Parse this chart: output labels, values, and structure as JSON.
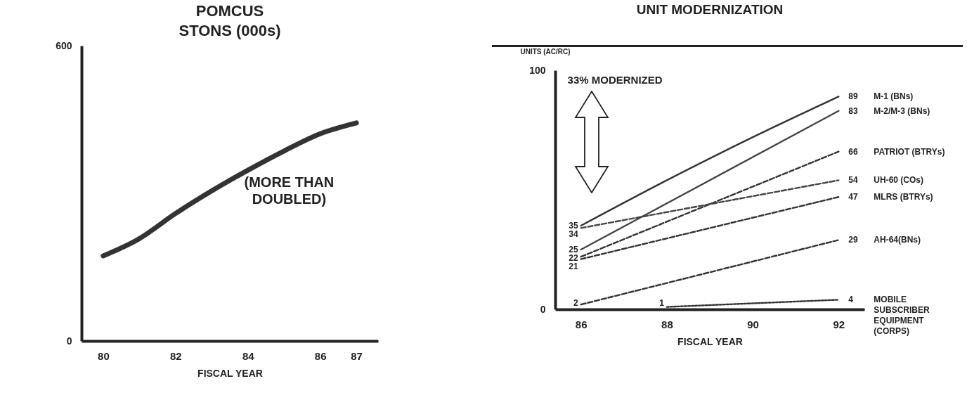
{
  "chart_data": [
    {
      "type": "line",
      "title": "POMCUS\nSTONS (000s)",
      "xlabel": "FISCAL YEAR",
      "x": [
        80,
        81,
        82,
        83,
        84,
        85,
        86,
        87
      ],
      "values": [
        173,
        208,
        259,
        305,
        347,
        386,
        421,
        443
      ],
      "color": "#333333",
      "xlim": [
        79.4,
        87.6
      ],
      "ylim": [
        0,
        600
      ],
      "xticks": [
        80,
        82,
        84,
        86,
        87
      ],
      "yticks": [
        0,
        600
      ],
      "grid": false,
      "marker": "none",
      "line_style": "solid",
      "annotations": [
        "(MORE THAN\nDOUBLED)"
      ]
    },
    {
      "type": "line",
      "title": "UNIT MODERNIZATION",
      "xlabel": "FISCAL YEAR",
      "ylabel": "UNITS (AC/RC)",
      "x": [
        86,
        88,
        90,
        92
      ],
      "xlim": [
        85.4,
        92.6
      ],
      "ylim": [
        0,
        100
      ],
      "xticks": [
        86,
        88,
        90,
        92
      ],
      "yticks": [
        0,
        100
      ],
      "grid": false,
      "marker": "none",
      "annotations": [
        "33% MODERNIZED"
      ],
      "series": [
        {
          "name": "M-1 (BNs)",
          "color": "#333333",
          "line_style": "solid",
          "values": [
            35,
            54,
            72,
            89
          ],
          "value_labels": [
            "35",
            null,
            null,
            "89"
          ]
        },
        {
          "name": "M-2/M-3 (BNs)",
          "color": "#444444",
          "line_style": "solid",
          "x": [
            86,
            92
          ],
          "values": [
            25,
            83
          ],
          "value_labels": [
            "25",
            "83"
          ]
        },
        {
          "name": "PATRIOT (BTRYs)",
          "color": "#333333",
          "line_style": "dashed",
          "x": [
            86,
            92
          ],
          "values": [
            22,
            66
          ],
          "value_labels": [
            "22",
            "66"
          ]
        },
        {
          "name": "UH-60 (COs)",
          "color": "#444444",
          "line_style": "dashed",
          "x": [
            86,
            92
          ],
          "values": [
            34,
            54
          ],
          "value_labels": [
            "34",
            "54"
          ]
        },
        {
          "name": "MLRS (BTRYs)",
          "color": "#333333",
          "line_style": "dashed",
          "x": [
            86,
            92
          ],
          "values": [
            21,
            47
          ],
          "value_labels": [
            "21",
            "47"
          ]
        },
        {
          "name": "AH-64(BNs)",
          "color": "#333333",
          "line_style": "dashed",
          "x": [
            86,
            92
          ],
          "values": [
            2,
            29
          ],
          "value_labels": [
            "2",
            "29"
          ]
        },
        {
          "name": "MOBILE\nSUBSCRIBER\nEQUIPMENT\n(CORPS)",
          "color": "#333333",
          "line_style": "dotted",
          "x": [
            88,
            92
          ],
          "values": [
            1,
            4
          ],
          "value_labels": [
            "1",
            "4"
          ]
        }
      ]
    }
  ]
}
